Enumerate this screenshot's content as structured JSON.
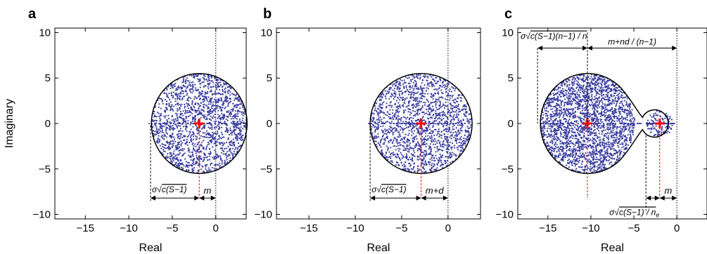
{
  "colors": {
    "points": "#3b3fa0",
    "boundary": "#000000",
    "eigen_center": "#ff0000",
    "annotation": "#000000"
  },
  "chart_data": [
    {
      "panel": "a",
      "type": "scatter",
      "xlabel": "Real",
      "ylabel": "Imaginary",
      "xlim": [
        -18.5,
        3.5
      ],
      "ylim": [
        -10.5,
        10.5
      ],
      "xticks": [
        -15,
        -10,
        -5,
        0
      ],
      "yticks": [
        -10,
        -5,
        0,
        5,
        10
      ],
      "grid": false,
      "vertical_ref_line_x": 0,
      "clusters": [
        {
          "center": [
            -1.9,
            0
          ],
          "radius": 5.5,
          "count": 1700
        }
      ],
      "annotations": [
        {
          "kind": "width",
          "x_from": -7.5,
          "x_to": -1.9,
          "text_sigma": "σ",
          "text_root": "c(S−1)",
          "text_den": ""
        },
        {
          "kind": "offset",
          "x_from": -1.9,
          "x_to": 0,
          "text": "m"
        }
      ]
    },
    {
      "panel": "b",
      "type": "scatter",
      "xlabel": "Real",
      "ylabel": "",
      "xlim": [
        -18.5,
        3.5
      ],
      "ylim": [
        -10.5,
        10.5
      ],
      "xticks": [
        -15,
        -10,
        -5,
        0
      ],
      "yticks": [
        -10,
        -5,
        0,
        5,
        10
      ],
      "grid": false,
      "vertical_ref_line_x": 0,
      "clusters": [
        {
          "center": [
            -2.9,
            0
          ],
          "radius": 5.5,
          "count": 1700
        }
      ],
      "annotations": [
        {
          "kind": "width",
          "x_from": -8.4,
          "x_to": -2.9,
          "text_sigma": "σ",
          "text_root": "c(S−1)",
          "text_den": ""
        },
        {
          "kind": "offset",
          "x_from": -2.9,
          "x_to": 0,
          "text": "m+d"
        }
      ]
    },
    {
      "panel": "c",
      "type": "scatter",
      "xlabel": "Real",
      "ylabel": "",
      "xlim": [
        -18.5,
        3.5
      ],
      "ylim": [
        -10.5,
        10.5
      ],
      "xticks": [
        -15,
        -10,
        -5,
        0
      ],
      "yticks": [
        -10,
        -5,
        0,
        5,
        10
      ],
      "grid": false,
      "vertical_ref_line_x": 0,
      "clusters": [
        {
          "center": [
            -10.4,
            0
          ],
          "radius": 5.5,
          "count": 2400
        },
        {
          "center": [
            -2.0,
            0
          ],
          "radius": 1.5,
          "count": 120
        }
      ],
      "annotations": [
        {
          "kind": "top_width",
          "x_from": -16.2,
          "x_to": -10.4,
          "text_sigma": "σ",
          "text_root": "c(S−1)(n−1) / n",
          "text_den": ""
        },
        {
          "kind": "top_offset",
          "x_from": -10.4,
          "x_to": 0,
          "text": "m+nd / (n−1)"
        },
        {
          "kind": "offset",
          "x_from": -2.0,
          "x_to": 0,
          "text": "m"
        },
        {
          "kind": "small_width",
          "x_from": -3.6,
          "x_to": -2.0,
          "text_sigma": "σ",
          "text_root": "c(S−1) / n",
          "text_den": "e"
        }
      ]
    }
  ]
}
